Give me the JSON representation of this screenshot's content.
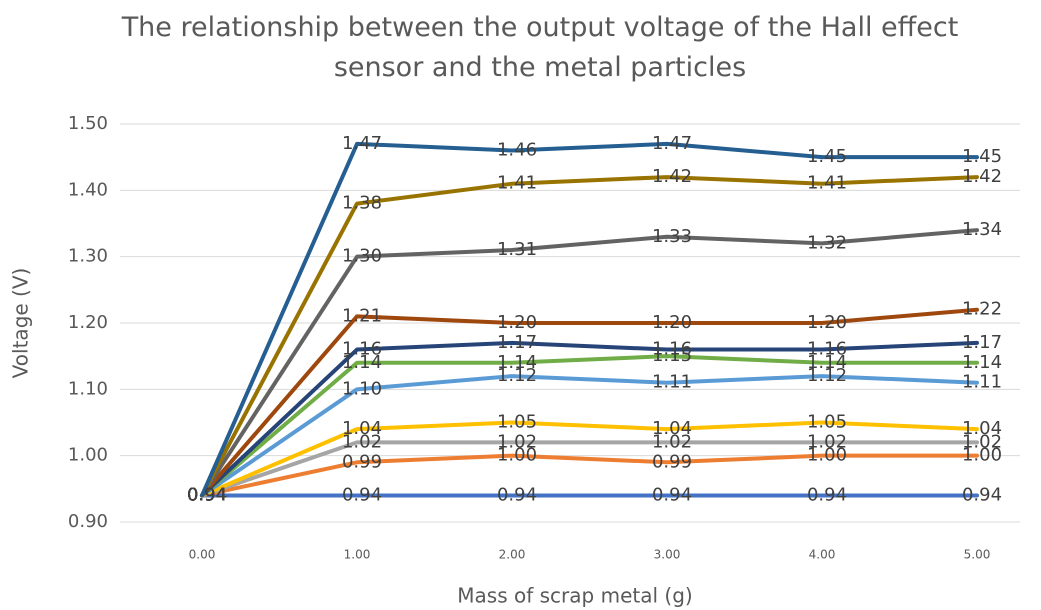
{
  "chart_data": {
    "type": "line",
    "title": "The relationship between the output voltage of the Hall effect sensor and the metal particles",
    "x_label": "Mass of scrap metal (g)",
    "y_label": "Voltage (V)",
    "categories": [
      "0.00",
      "1.00",
      "2.00",
      "3.00",
      "4.00",
      "5.00"
    ],
    "ylim": [
      0.9,
      1.5
    ],
    "yticks": [
      {
        "value": 0.9,
        "label": "0.90"
      },
      {
        "value": 1.0,
        "label": "1.00"
      },
      {
        "value": 1.1,
        "label": "1.10"
      },
      {
        "value": 1.2,
        "label": "1.20"
      },
      {
        "value": 1.3,
        "label": "1.30"
      },
      {
        "value": 1.4,
        "label": "1.40"
      },
      {
        "value": 1.5,
        "label": "1.50"
      }
    ],
    "grid": true,
    "series": [
      {
        "color": "#4472c4",
        "values": [
          0.94,
          0.94,
          0.94,
          0.94,
          0.94,
          0.94
        ],
        "value_labels": [
          "0.94",
          "0.94",
          "0.94",
          "0.94",
          "0.94",
          "0.94"
        ]
      },
      {
        "color": "#ed7d31",
        "values": [
          0.94,
          0.99,
          1.0,
          0.99,
          1.0,
          1.0
        ],
        "value_labels": [
          "0.94",
          "0.99",
          "1.00",
          "0.99",
          "1.00",
          "1.00"
        ]
      },
      {
        "color": "#a5a5a5",
        "values": [
          0.94,
          1.02,
          1.02,
          1.02,
          1.02,
          1.02
        ],
        "value_labels": [
          "0.94",
          "1.02",
          "1.02",
          "1.02",
          "1.02",
          "1.02"
        ]
      },
      {
        "color": "#ffc000",
        "values": [
          0.94,
          1.04,
          1.05,
          1.04,
          1.05,
          1.04
        ],
        "value_labels": [
          "0.94",
          "1.04",
          "1.05",
          "1.04",
          "1.05",
          "1.04"
        ]
      },
      {
        "color": "#5b9bd5",
        "values": [
          0.94,
          1.1,
          1.12,
          1.11,
          1.12,
          1.11
        ],
        "value_labels": [
          "0.94",
          "1.10",
          "1.12",
          "1.11",
          "1.12",
          "1.11"
        ]
      },
      {
        "color": "#70ad47",
        "values": [
          0.94,
          1.14,
          1.14,
          1.15,
          1.14,
          1.14
        ],
        "value_labels": [
          "0.94",
          "1.14",
          "1.14",
          "1.15",
          "1.14",
          "1.14"
        ]
      },
      {
        "color": "#264478",
        "values": [
          0.94,
          1.16,
          1.17,
          1.16,
          1.16,
          1.17
        ],
        "value_labels": [
          "0.94",
          "1.16",
          "1.17",
          "1.16",
          "1.16",
          "1.17"
        ]
      },
      {
        "color": "#9e480e",
        "values": [
          0.94,
          1.21,
          1.2,
          1.2,
          1.2,
          1.22
        ],
        "value_labels": [
          "0.94",
          "1.21",
          "1.20",
          "1.20",
          "1.20",
          "1.22"
        ]
      },
      {
        "color": "#636363",
        "values": [
          0.94,
          1.3,
          1.31,
          1.33,
          1.32,
          1.34
        ],
        "value_labels": [
          "0.94",
          "1.30",
          "1.31",
          "1.33",
          "1.32",
          "1.34"
        ]
      },
      {
        "color": "#997300",
        "values": [
          0.94,
          1.38,
          1.41,
          1.42,
          1.41,
          1.42
        ],
        "value_labels": [
          "0.94",
          "1.38",
          "1.41",
          "1.42",
          "1.41",
          "1.42"
        ]
      },
      {
        "color": "#255e91",
        "values": [
          0.94,
          1.47,
          1.46,
          1.47,
          1.45,
          1.45
        ],
        "value_labels": [
          "0.94",
          "1.47",
          "1.46",
          "1.47",
          "1.45",
          "1.45"
        ]
      }
    ]
  }
}
